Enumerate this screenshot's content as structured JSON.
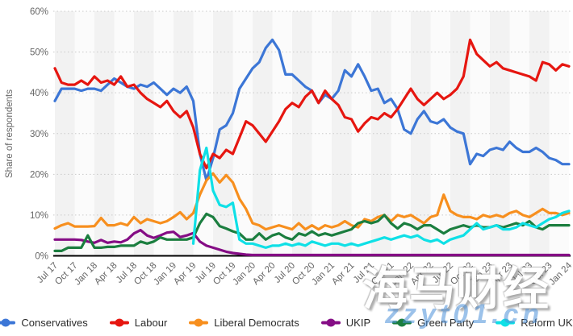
{
  "watermarks": {
    "brand": "海马财经",
    "url": "zzyt01.cn"
  },
  "chart_data": {
    "type": "line",
    "title": "",
    "ylabel": "Share of respondents",
    "ylim": [
      0,
      60
    ],
    "grid": "horizontal-dotted, alternating quarterly background bands",
    "legend_position": "bottom",
    "y_ticks": [
      "0%",
      "10%",
      "20%",
      "30%",
      "40%",
      "50%",
      "60%"
    ],
    "x_tick_labels": [
      "Jul 17",
      "Oct 17",
      "Jan 18",
      "Apr 18",
      "Jul 18",
      "Oct 18",
      "Jan 19",
      "Apr 19",
      "Jul 19",
      "Oct 19",
      "Jan 20",
      "Apr 20",
      "Jul 20",
      "Oct 20",
      "Jan 21",
      "Apr 21",
      "Jul 21",
      "Oct 21",
      "Jan 22",
      "Apr 22",
      "Jul 22",
      "Oct 22",
      "Jan 23",
      "Apr 23",
      "Jul 23",
      "Oct 23",
      "Jan 24"
    ],
    "x_unit": "monthly, Jul 2017 - Jan 2024",
    "series": [
      {
        "name": "Conservatives",
        "color": "#3c76d6",
        "values": [
          38,
          41,
          41,
          41,
          40.5,
          41,
          41,
          40.5,
          42,
          43.5,
          42.5,
          41.5,
          41,
          42,
          41.5,
          42.5,
          41,
          39.5,
          41,
          40,
          41.5,
          38,
          25,
          18.5,
          24,
          31,
          32,
          35,
          41,
          43.5,
          46,
          47.5,
          51,
          53,
          50.5,
          44.5,
          44.5,
          43,
          41.5,
          40.5,
          37.5,
          39.5,
          38.5,
          40.5,
          45.5,
          44,
          47,
          44,
          40.5,
          41,
          37.5,
          38.5,
          36,
          31,
          30,
          33.5,
          35.5,
          33,
          32.5,
          33.5,
          31.5,
          30.5,
          30,
          22.5,
          25,
          24.5,
          26,
          26.5,
          26,
          28,
          26.5,
          25.5,
          25.5,
          26.5,
          25.5,
          24,
          23.5,
          22.5,
          22.5
        ]
      },
      {
        "name": "Labour",
        "color": "#e61610",
        "values": [
          46,
          42.5,
          42,
          42,
          43,
          42,
          44,
          42.5,
          43,
          42,
          44,
          41.5,
          42,
          40,
          38.5,
          37.5,
          36.5,
          38,
          35.5,
          34,
          35.5,
          31.5,
          25,
          21.5,
          25,
          24,
          26,
          25,
          29,
          33,
          32,
          30,
          28,
          30.5,
          33,
          36,
          37.5,
          36.5,
          39,
          40.5,
          37.5,
          40.5,
          38.5,
          37,
          34,
          33.5,
          30.5,
          32.5,
          34,
          33.5,
          35,
          34,
          36,
          38.5,
          41,
          38.5,
          37,
          38.5,
          40,
          38.5,
          39.5,
          41,
          44,
          53,
          49.5,
          48,
          46.5,
          47.5,
          46,
          45.5,
          45,
          44.5,
          44,
          43,
          47.5,
          47,
          45.5,
          47,
          46.5
        ]
      },
      {
        "name": "Liberal Democrats",
        "color": "#f78f1e",
        "values": [
          6.7,
          7.5,
          8,
          7.2,
          7.2,
          7.2,
          7.3,
          9.3,
          7.5,
          7.5,
          8,
          7.5,
          9.5,
          8,
          9,
          8.5,
          8,
          8.5,
          9.5,
          10.7,
          9,
          10.5,
          15,
          18.5,
          20.2,
          18,
          19.8,
          18,
          14,
          11.5,
          8,
          7.5,
          6.5,
          7,
          7.5,
          7,
          6.5,
          8,
          6.5,
          7.5,
          6.5,
          7.5,
          7,
          7.5,
          8.5,
          7.5,
          7,
          9,
          8.5,
          9.5,
          10,
          8.5,
          10,
          9.5,
          10,
          9,
          8,
          9.5,
          10,
          15,
          11,
          10,
          9.5,
          9.5,
          9,
          10,
          9.5,
          10,
          9.5,
          10.5,
          11,
          10,
          9.5,
          10.5,
          11.5,
          10.5,
          10.5,
          10,
          10.5
        ]
      },
      {
        "name": "UKIP",
        "color": "#850d85",
        "values": [
          4,
          4,
          4,
          4,
          3.9,
          3.5,
          3.2,
          3.9,
          3.2,
          3.5,
          3.3,
          4,
          5.5,
          6.3,
          5,
          4.4,
          5,
          5.7,
          5.9,
          4.6,
          5,
          5.6,
          3.5,
          2.5,
          2,
          1.5,
          1,
          0.7,
          0.5,
          0.3,
          0.2,
          0.2,
          0.2,
          0.2,
          0.2,
          0.2,
          0.2,
          0.2,
          0.2,
          0.2,
          0.2,
          0.2,
          0.2,
          0.2,
          0.2,
          0.2,
          0.2,
          0.2,
          0.2,
          0.2,
          0.2,
          0.2,
          0.2,
          0.2,
          0.2,
          0.2,
          0.2,
          0.2,
          0.2,
          0.2,
          0.2,
          0.2,
          0.2,
          0.2,
          0.2,
          0.2,
          0.2,
          0.2,
          0.2,
          0.2,
          0.2,
          0.2,
          0.2,
          0.2,
          0.2,
          0.2,
          0.2,
          0.2,
          0.2
        ]
      },
      {
        "name": "Green Party",
        "color": "#1b7e3f",
        "values": [
          1.2,
          1.2,
          2,
          2,
          2,
          5,
          2,
          2,
          2.2,
          2.2,
          2.5,
          2.5,
          2.5,
          3.5,
          3,
          3.5,
          4.5,
          4,
          4,
          4,
          4,
          4.5,
          8,
          10.3,
          9.5,
          7.3,
          6.7,
          6,
          5.5,
          4,
          4,
          5.5,
          4,
          5,
          5.5,
          4.5,
          4,
          5.5,
          5,
          6,
          5,
          5.5,
          5,
          5.5,
          6,
          6.5,
          8,
          8.5,
          8,
          8.5,
          10,
          8,
          6.7,
          8,
          7.5,
          6.5,
          7.5,
          7.5,
          6.5,
          5.5,
          6.5,
          7,
          7.5,
          7,
          7.5,
          7,
          7,
          7.5,
          7,
          7.5,
          8,
          7.5,
          8.5,
          7,
          6.5,
          7.5,
          7.5,
          7.5,
          7.5
        ]
      },
      {
        "name": "Reform UK*",
        "color": "#0fe0e6",
        "values": [
          null,
          null,
          null,
          null,
          null,
          null,
          null,
          null,
          null,
          null,
          null,
          null,
          null,
          null,
          null,
          null,
          null,
          null,
          null,
          null,
          null,
          3,
          21,
          26.5,
          16,
          12.5,
          12,
          13,
          4,
          3,
          3,
          2.5,
          2,
          2.5,
          2.5,
          3,
          2.5,
          3,
          2.5,
          3.5,
          3,
          2.5,
          3,
          3,
          2.5,
          3,
          2.5,
          3,
          3.5,
          4,
          4.5,
          4,
          4.5,
          5,
          4.5,
          5,
          4,
          3.5,
          4,
          3,
          4,
          4.5,
          5,
          6.5,
          8,
          6.5,
          7,
          7.5,
          6.5,
          6.5,
          7,
          8,
          7.5,
          7,
          8,
          9,
          9.5,
          10.5,
          11
        ]
      }
    ]
  }
}
